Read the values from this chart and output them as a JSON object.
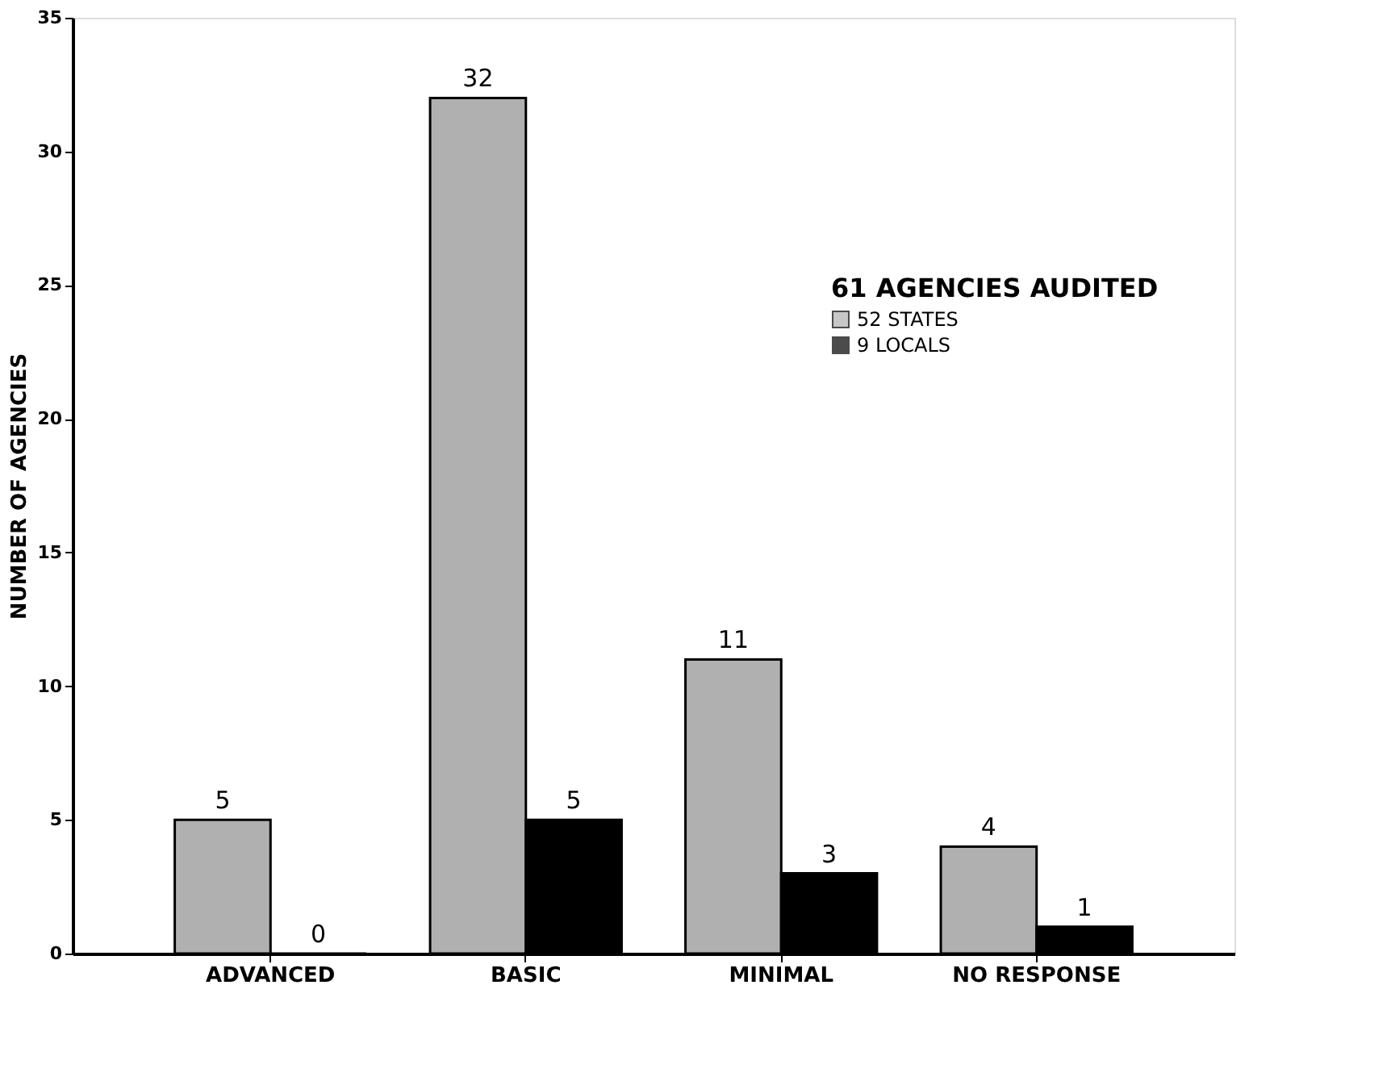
{
  "chart_data": {
    "type": "bar",
    "ylabel": "NUMBER OF AGENCIES",
    "legend_title": "61 AGENCIES AUDITED",
    "categories": [
      "ADVANCED",
      "BASIC",
      "MINIMAL",
      "NO RESPONSE"
    ],
    "series": [
      {
        "name": "52 STATES",
        "color": "#b0b0b0",
        "values": [
          5,
          32,
          11,
          4
        ]
      },
      {
        "name": "9 LOCALS",
        "color": "#000000",
        "values": [
          0,
          5,
          3,
          1
        ]
      }
    ],
    "ylim": [
      0,
      35
    ],
    "yticks": [
      0,
      5,
      10,
      15,
      20,
      25,
      30,
      35
    ],
    "grid": false,
    "legend": "top right",
    "data_labels": true
  }
}
